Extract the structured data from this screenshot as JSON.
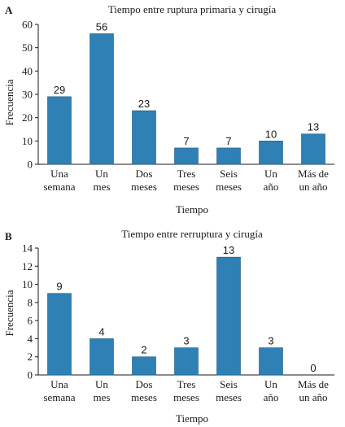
{
  "colors": {
    "bar": "#2f80b5",
    "bar_edge": "#1f5a80",
    "axis": "#1a1a1a"
  },
  "chart_data": [
    {
      "type": "bar",
      "panel": "A",
      "title": "Tiempo entre ruptura primaria y cirugía",
      "xlabel": "Tiempo",
      "ylabel": "Frecuencia",
      "categories": [
        [
          "Una",
          "semana"
        ],
        [
          "Un",
          "mes"
        ],
        [
          "Dos",
          "meses"
        ],
        [
          "Tres",
          "meses"
        ],
        [
          "Seis",
          "meses"
        ],
        [
          "Un",
          "año"
        ],
        [
          "Más de",
          "un año"
        ]
      ],
      "values": [
        29,
        56,
        23,
        7,
        7,
        10,
        13
      ],
      "ylim": [
        0,
        60
      ],
      "yticks": [
        0,
        10,
        20,
        30,
        40,
        50,
        60
      ],
      "grid": false
    },
    {
      "type": "bar",
      "panel": "B",
      "title": "Tiempo entre rerruptura y cirugía",
      "xlabel": "Tiempo",
      "ylabel": "Frecuencia",
      "categories": [
        [
          "Una",
          "semana"
        ],
        [
          "Un",
          "mes"
        ],
        [
          "Dos",
          "meses"
        ],
        [
          "Tres",
          "meses"
        ],
        [
          "Seis",
          "meses"
        ],
        [
          "Un",
          "año"
        ],
        [
          "Más de",
          "un año"
        ]
      ],
      "values": [
        9,
        4,
        2,
        3,
        13,
        3,
        0
      ],
      "ylim": [
        0,
        14
      ],
      "yticks": [
        0,
        2,
        4,
        6,
        8,
        10,
        12,
        14
      ],
      "grid": false
    }
  ]
}
